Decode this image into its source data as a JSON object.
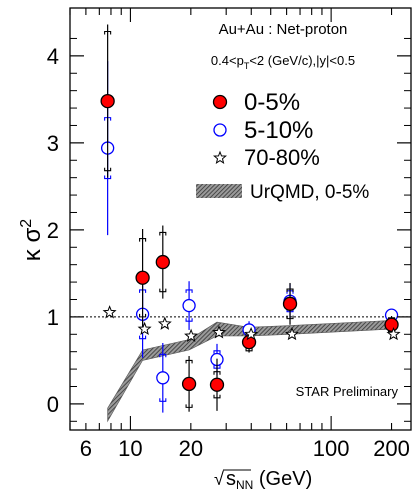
{
  "chart_data": {
    "type": "scatter",
    "title": "",
    "ylabel_base": "κ σ",
    "ylabel_sup": "2",
    "xlabel_pre": "√",
    "xlabel_main": "s",
    "xlabel_sub": "NN",
    "xlabel_post": " (GeV)",
    "xscale": "log",
    "xlim": [
      5,
      250
    ],
    "ylim": [
      -0.3,
      4.55
    ],
    "x_tick_labels": [
      "6",
      "10",
      "20",
      "100",
      "200"
    ],
    "x_tick_values": [
      6,
      10,
      20,
      100,
      200
    ],
    "y_tick_labels": [
      "0",
      "1",
      "2",
      "3",
      "4"
    ],
    "y_tick_values": [
      0,
      1,
      2,
      3,
      4
    ],
    "reference_line": 1,
    "annotation_system": "Au+Au : Net-proton",
    "annotation_cut_pre": "0.4<p",
    "annotation_cut_sub": "T",
    "annotation_cut_post": "<2 (GeV/c),|y|<0.5",
    "watermark": "STAR Preliminary",
    "legend_placement": "top-right",
    "series": [
      {
        "name": "0-5%",
        "marker": "filled-circle",
        "color": "#ff0000",
        "edge": "#000000",
        "points": [
          {
            "x": 7.7,
            "y": 3.48,
            "err": 0.88,
            "sys": 0.8
          },
          {
            "x": 11.5,
            "y": 1.45,
            "err": 0.56,
            "sys": 0.45
          },
          {
            "x": 14.5,
            "y": 1.63,
            "err": 0.42,
            "sys": 0.34
          },
          {
            "x": 19.6,
            "y": 0.23,
            "err": 0.32,
            "sys": 0.27
          },
          {
            "x": 27,
            "y": 0.22,
            "err": 0.3,
            "sys": 0.15
          },
          {
            "x": 39,
            "y": 0.71,
            "err": 0.12,
            "sys": 0.1
          },
          {
            "x": 62.4,
            "y": 1.15,
            "err": 0.24,
            "sys": 0.17
          },
          {
            "x": 200,
            "y": 0.91,
            "err": 0.1,
            "sys": 0.08
          }
        ]
      },
      {
        "name": "5-10%",
        "marker": "open-circle",
        "color": "#0000ff",
        "points": [
          {
            "x": 7.7,
            "y": 2.94,
            "err": 1.0,
            "sys": 0.35
          },
          {
            "x": 11.5,
            "y": 1.03,
            "err": 0.5,
            "sys": 0.28
          },
          {
            "x": 14.5,
            "y": 0.3,
            "err": 0.4,
            "sys": 0.27
          },
          {
            "x": 19.6,
            "y": 1.13,
            "err": 0.28,
            "sys": 0.18
          },
          {
            "x": 27,
            "y": 0.51,
            "err": 0.18,
            "sys": 0.1
          },
          {
            "x": 39,
            "y": 0.85,
            "err": 0.1,
            "sys": 0.06
          },
          {
            "x": 62.4,
            "y": 1.18,
            "err": 0.2,
            "sys": 0.12
          },
          {
            "x": 200,
            "y": 1.02,
            "err": 0.07,
            "sys": 0.05
          }
        ]
      },
      {
        "name": "70-80%",
        "marker": "open-star",
        "color": "#000000",
        "points": [
          {
            "x": 7.7,
            "y": 1.05
          },
          {
            "x": 11.5,
            "y": 0.86
          },
          {
            "x": 14.5,
            "y": 0.92
          },
          {
            "x": 19.6,
            "y": 0.78
          },
          {
            "x": 27,
            "y": 0.82
          },
          {
            "x": 39,
            "y": 0.8
          },
          {
            "x": 62.4,
            "y": 0.8
          },
          {
            "x": 200,
            "y": 0.8
          }
        ]
      },
      {
        "name": "UrQMD, 0-5%",
        "marker": "hatched-band",
        "color": "#444444",
        "band": [
          {
            "x": 7.7,
            "low": -0.2,
            "high": -0.05
          },
          {
            "x": 11.5,
            "low": 0.5,
            "high": 0.62
          },
          {
            "x": 19.6,
            "low": 0.62,
            "high": 0.74
          },
          {
            "x": 27,
            "low": 0.78,
            "high": 0.94
          },
          {
            "x": 39,
            "low": 0.78,
            "high": 0.88
          },
          {
            "x": 62.4,
            "low": 0.8,
            "high": 0.9
          },
          {
            "x": 200,
            "low": 0.86,
            "high": 0.96
          }
        ]
      }
    ]
  }
}
